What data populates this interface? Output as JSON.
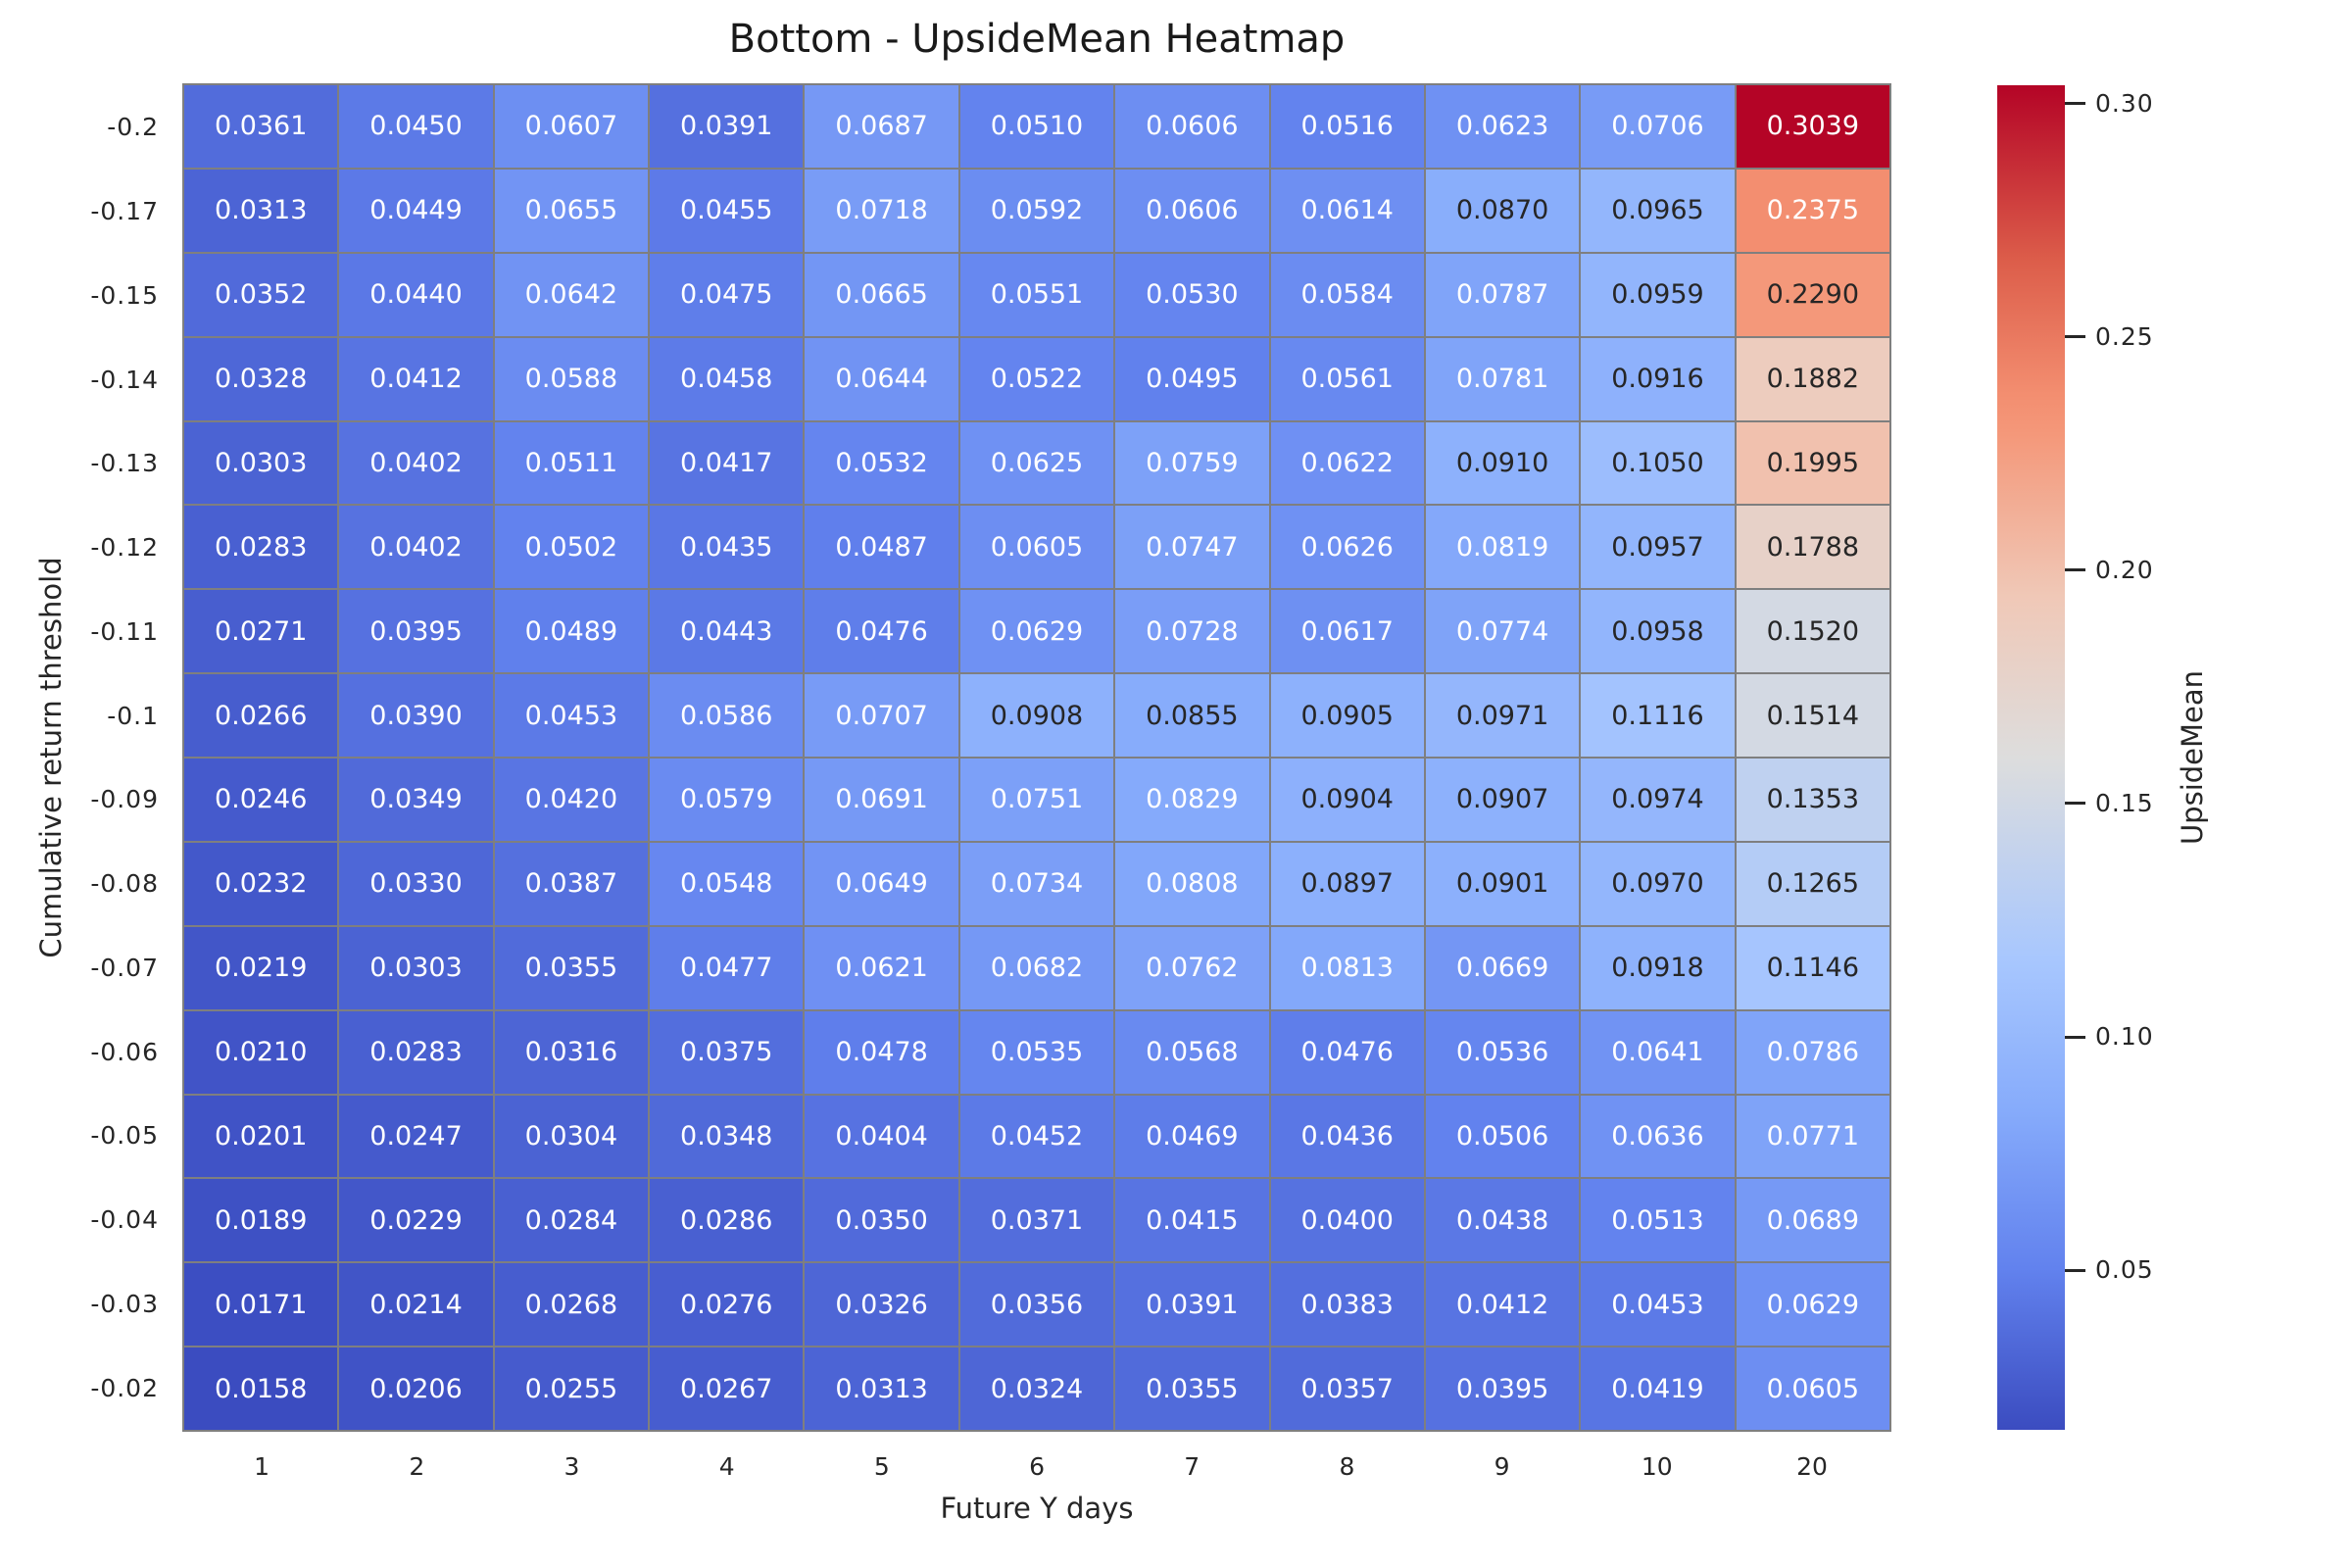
{
  "title": "Bottom - UpsideMean Heatmap",
  "chart_data": {
    "type": "heatmap",
    "title": "Bottom - UpsideMean Heatmap",
    "xlabel": "Future Y days",
    "ylabel": "Cumulative return threshold",
    "x_ticks": [
      "1",
      "2",
      "3",
      "4",
      "5",
      "6",
      "7",
      "8",
      "9",
      "10",
      "20"
    ],
    "y_ticks": [
      "-0.2",
      "-0.17",
      "-0.15",
      "-0.14",
      "-0.13",
      "-0.12",
      "-0.11",
      "-0.1",
      "-0.09",
      "-0.08",
      "-0.07",
      "-0.06",
      "-0.05",
      "-0.04",
      "-0.03",
      "-0.02"
    ],
    "values": [
      [
        0.0361,
        0.045,
        0.0607,
        0.0391,
        0.0687,
        0.051,
        0.0606,
        0.0516,
        0.0623,
        0.0706,
        0.3039
      ],
      [
        0.0313,
        0.0449,
        0.0655,
        0.0455,
        0.0718,
        0.0592,
        0.0606,
        0.0614,
        0.087,
        0.0965,
        0.2375
      ],
      [
        0.0352,
        0.044,
        0.0642,
        0.0475,
        0.0665,
        0.0551,
        0.053,
        0.0584,
        0.0787,
        0.0959,
        0.229
      ],
      [
        0.0328,
        0.0412,
        0.0588,
        0.0458,
        0.0644,
        0.0522,
        0.0495,
        0.0561,
        0.0781,
        0.0916,
        0.1882
      ],
      [
        0.0303,
        0.0402,
        0.0511,
        0.0417,
        0.0532,
        0.0625,
        0.0759,
        0.0622,
        0.091,
        0.105,
        0.1995
      ],
      [
        0.0283,
        0.0402,
        0.0502,
        0.0435,
        0.0487,
        0.0605,
        0.0747,
        0.0626,
        0.0819,
        0.0957,
        0.1788
      ],
      [
        0.0271,
        0.0395,
        0.0489,
        0.0443,
        0.0476,
        0.0629,
        0.0728,
        0.0617,
        0.0774,
        0.0958,
        0.152
      ],
      [
        0.0266,
        0.039,
        0.0453,
        0.0586,
        0.0707,
        0.0908,
        0.0855,
        0.0905,
        0.0971,
        0.1116,
        0.1514
      ],
      [
        0.0246,
        0.0349,
        0.042,
        0.0579,
        0.0691,
        0.0751,
        0.0829,
        0.0904,
        0.0907,
        0.0974,
        0.1353
      ],
      [
        0.0232,
        0.033,
        0.0387,
        0.0548,
        0.0649,
        0.0734,
        0.0808,
        0.0897,
        0.0901,
        0.097,
        0.1265
      ],
      [
        0.0219,
        0.0303,
        0.0355,
        0.0477,
        0.0621,
        0.0682,
        0.0762,
        0.0813,
        0.0669,
        0.0918,
        0.1146
      ],
      [
        0.021,
        0.0283,
        0.0316,
        0.0375,
        0.0478,
        0.0535,
        0.0568,
        0.0476,
        0.0536,
        0.0641,
        0.0786
      ],
      [
        0.0201,
        0.0247,
        0.0304,
        0.0348,
        0.0404,
        0.0452,
        0.0469,
        0.0436,
        0.0506,
        0.0636,
        0.0771
      ],
      [
        0.0189,
        0.0229,
        0.0284,
        0.0286,
        0.035,
        0.0371,
        0.0415,
        0.04,
        0.0438,
        0.0513,
        0.0689
      ],
      [
        0.0171,
        0.0214,
        0.0268,
        0.0276,
        0.0326,
        0.0356,
        0.0391,
        0.0383,
        0.0412,
        0.0453,
        0.0629
      ],
      [
        0.0158,
        0.0206,
        0.0255,
        0.0267,
        0.0313,
        0.0324,
        0.0355,
        0.0357,
        0.0395,
        0.0419,
        0.0605
      ]
    ],
    "value_format_decimals": 4,
    "vmin": 0.0158,
    "vmax": 0.3039,
    "colorbar_label": "UpsideMean",
    "colorbar_ticks": [
      {
        "label": "0.30",
        "value": 0.3
      },
      {
        "label": "0.25",
        "value": 0.25
      },
      {
        "label": "0.20",
        "value": 0.2
      },
      {
        "label": "0.15",
        "value": 0.15
      },
      {
        "label": "0.10",
        "value": 0.1
      },
      {
        "label": "0.05",
        "value": 0.05
      }
    ],
    "colormap_name": "coolwarm",
    "colormap_stops": [
      {
        "t": 0.0,
        "rgb": [
          59,
          76,
          192
        ]
      },
      {
        "t": 0.12,
        "rgb": [
          98,
          130,
          238
        ]
      },
      {
        "t": 0.237,
        "rgb": [
          134,
          171,
          251
        ]
      },
      {
        "t": 0.35,
        "rgb": [
          168,
          199,
          254
        ]
      },
      {
        "t": 0.5,
        "rgb": [
          221,
          221,
          221
        ]
      },
      {
        "t": 0.62,
        "rgb": [
          240,
          200,
          183
        ]
      },
      {
        "t": 0.74,
        "rgb": [
          244,
          152,
          122
        ]
      },
      {
        "t": 0.77,
        "rgb": [
          243,
          142,
          112
        ]
      },
      {
        "t": 0.87,
        "rgb": [
          220,
          93,
          74
        ]
      },
      {
        "t": 1.0,
        "rgb": [
          180,
          4,
          38
        ]
      }
    ],
    "grid_line_color": "#7f7f7f",
    "annotation_dark_text_color": "#262626",
    "annotation_light_text_color": "#ffffff",
    "luminance_black_text_threshold": 0.408
  },
  "colors": {
    "background": "#ffffff",
    "tick_label": "#262626",
    "title": "#1a1a1a"
  }
}
